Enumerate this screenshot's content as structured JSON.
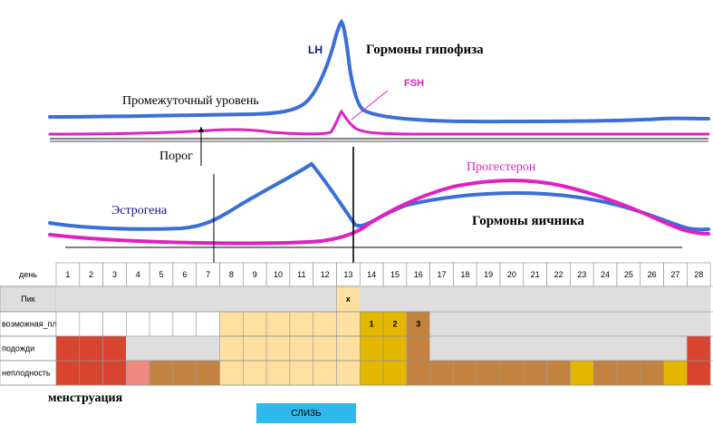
{
  "labels": {
    "lh": "LH",
    "fsh": "FSH",
    "pituitary": "Гормоны гипофиза",
    "intermediate": "Промежуточный уровень",
    "threshold": "Порог",
    "estrogen": "Эстрогена",
    "progesterone": "Прогестерон",
    "ovarian": "Гормоны яичника",
    "menstruation": "менструация",
    "mucus_button": "СЛИЗЬ"
  },
  "colors": {
    "lh_line": "#3a6fd8",
    "fsh_line": "#e020c0",
    "estrogen_line": "#3a6fd8",
    "progesterone_line": "#e020c0",
    "menstruation": "#d9442e",
    "menstruation_light": "#f08a80",
    "infertile_brown": "#c48240",
    "fertile_light": "#fde0a0",
    "ovulation_gold": "#e5b800",
    "fertile_numbered": "#c48240",
    "gray_fill": "#dedede",
    "mucus_button": "#2eb8ec"
  },
  "table": {
    "day_header": "день",
    "days": [
      "1",
      "2",
      "3",
      "4",
      "5",
      "6",
      "7",
      "8",
      "9",
      "10",
      "11",
      "12",
      "13",
      "14",
      "15",
      "16",
      "17",
      "18",
      "19",
      "20",
      "21",
      "22",
      "23",
      "24",
      "25",
      "26",
      "27",
      "28"
    ],
    "rows": [
      {
        "label": "Пик",
        "cells": [
          "gray",
          "gray",
          "gray",
          "gray",
          "gray",
          "gray",
          "gray",
          "gray",
          "gray",
          "gray",
          "gray",
          "gray",
          "fertile",
          "gray",
          "gray",
          "gray",
          "gray",
          "gray",
          "gray",
          "gray",
          "gray",
          "gray",
          "gray",
          "gray",
          "gray",
          "gray",
          "gray",
          "gray"
        ],
        "marks": {
          "13": "x"
        }
      },
      {
        "label": "возможная_плодность",
        "cells": [
          "white",
          "white",
          "white",
          "white",
          "white",
          "white",
          "white",
          "fertile",
          "fertile",
          "fertile",
          "fertile",
          "fertile",
          "fertile",
          "gold",
          "gold",
          "brown",
          "gray",
          "gray",
          "gray",
          "gray",
          "gray",
          "gray",
          "gray",
          "gray",
          "gray",
          "gray",
          "gray",
          "gray"
        ],
        "marks": {
          "14": "1",
          "15": "2",
          "16": "3"
        }
      },
      {
        "label": "подожди",
        "cells": [
          "red",
          "red",
          "red",
          "gray",
          "gray",
          "gray",
          "gray",
          "fertile",
          "fertile",
          "fertile",
          "fertile",
          "fertile",
          "fertile",
          "gold",
          "gold",
          "brown",
          "gray",
          "gray",
          "gray",
          "gray",
          "gray",
          "gray",
          "gray",
          "gray",
          "gray",
          "gray",
          "gray",
          "red"
        ],
        "marks": {}
      },
      {
        "label": "неплодность",
        "cells": [
          "red",
          "red",
          "red",
          "pink",
          "brown",
          "brown",
          "brown",
          "fertile",
          "fertile",
          "fertile",
          "fertile",
          "fertile",
          "fertile",
          "gold",
          "gold",
          "brown",
          "brown",
          "brown",
          "brown",
          "brown",
          "brown",
          "brown",
          "gold",
          "brown",
          "brown",
          "brown",
          "gold",
          "red"
        ],
        "marks": {}
      }
    ]
  }
}
